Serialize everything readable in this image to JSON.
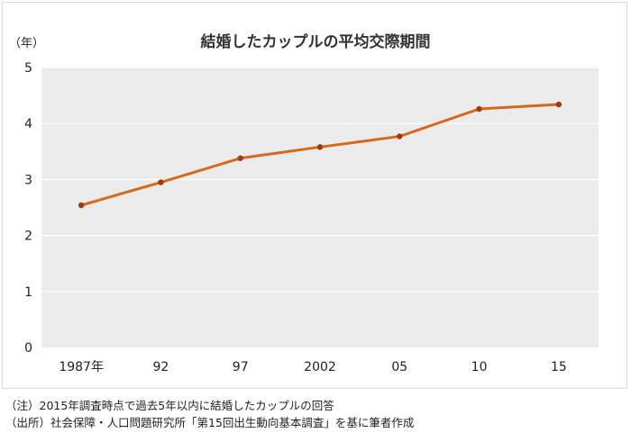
{
  "chart_data": {
    "type": "line",
    "title": "結婚したカップルの平均交際期間",
    "ylabel": "（年）",
    "xlabel": "",
    "categories": [
      "1987年",
      "92",
      "97",
      "2002",
      "05",
      "10",
      "15"
    ],
    "series": [
      {
        "name": "平均交際期間",
        "values": [
          2.54,
          2.95,
          3.38,
          3.58,
          3.77,
          4.26,
          4.34
        ],
        "color": "#d4691e"
      }
    ],
    "ylim": [
      0,
      5
    ],
    "yticks": [
      "0",
      "1",
      "2",
      "3",
      "4",
      "5"
    ],
    "grid": true,
    "legend": "none",
    "colors": {
      "line": "#d4691e",
      "marker": "#9e3a10",
      "plot_background": "#ebebeb",
      "gridline": "#ffffff"
    }
  },
  "notes": [
    "（注）2015年調査時点で過去5年以内に結婚したカップルの回答",
    "（出所）社会保障・人口問題研究所「第15回出生動向基本調査」を基に筆者作成"
  ]
}
